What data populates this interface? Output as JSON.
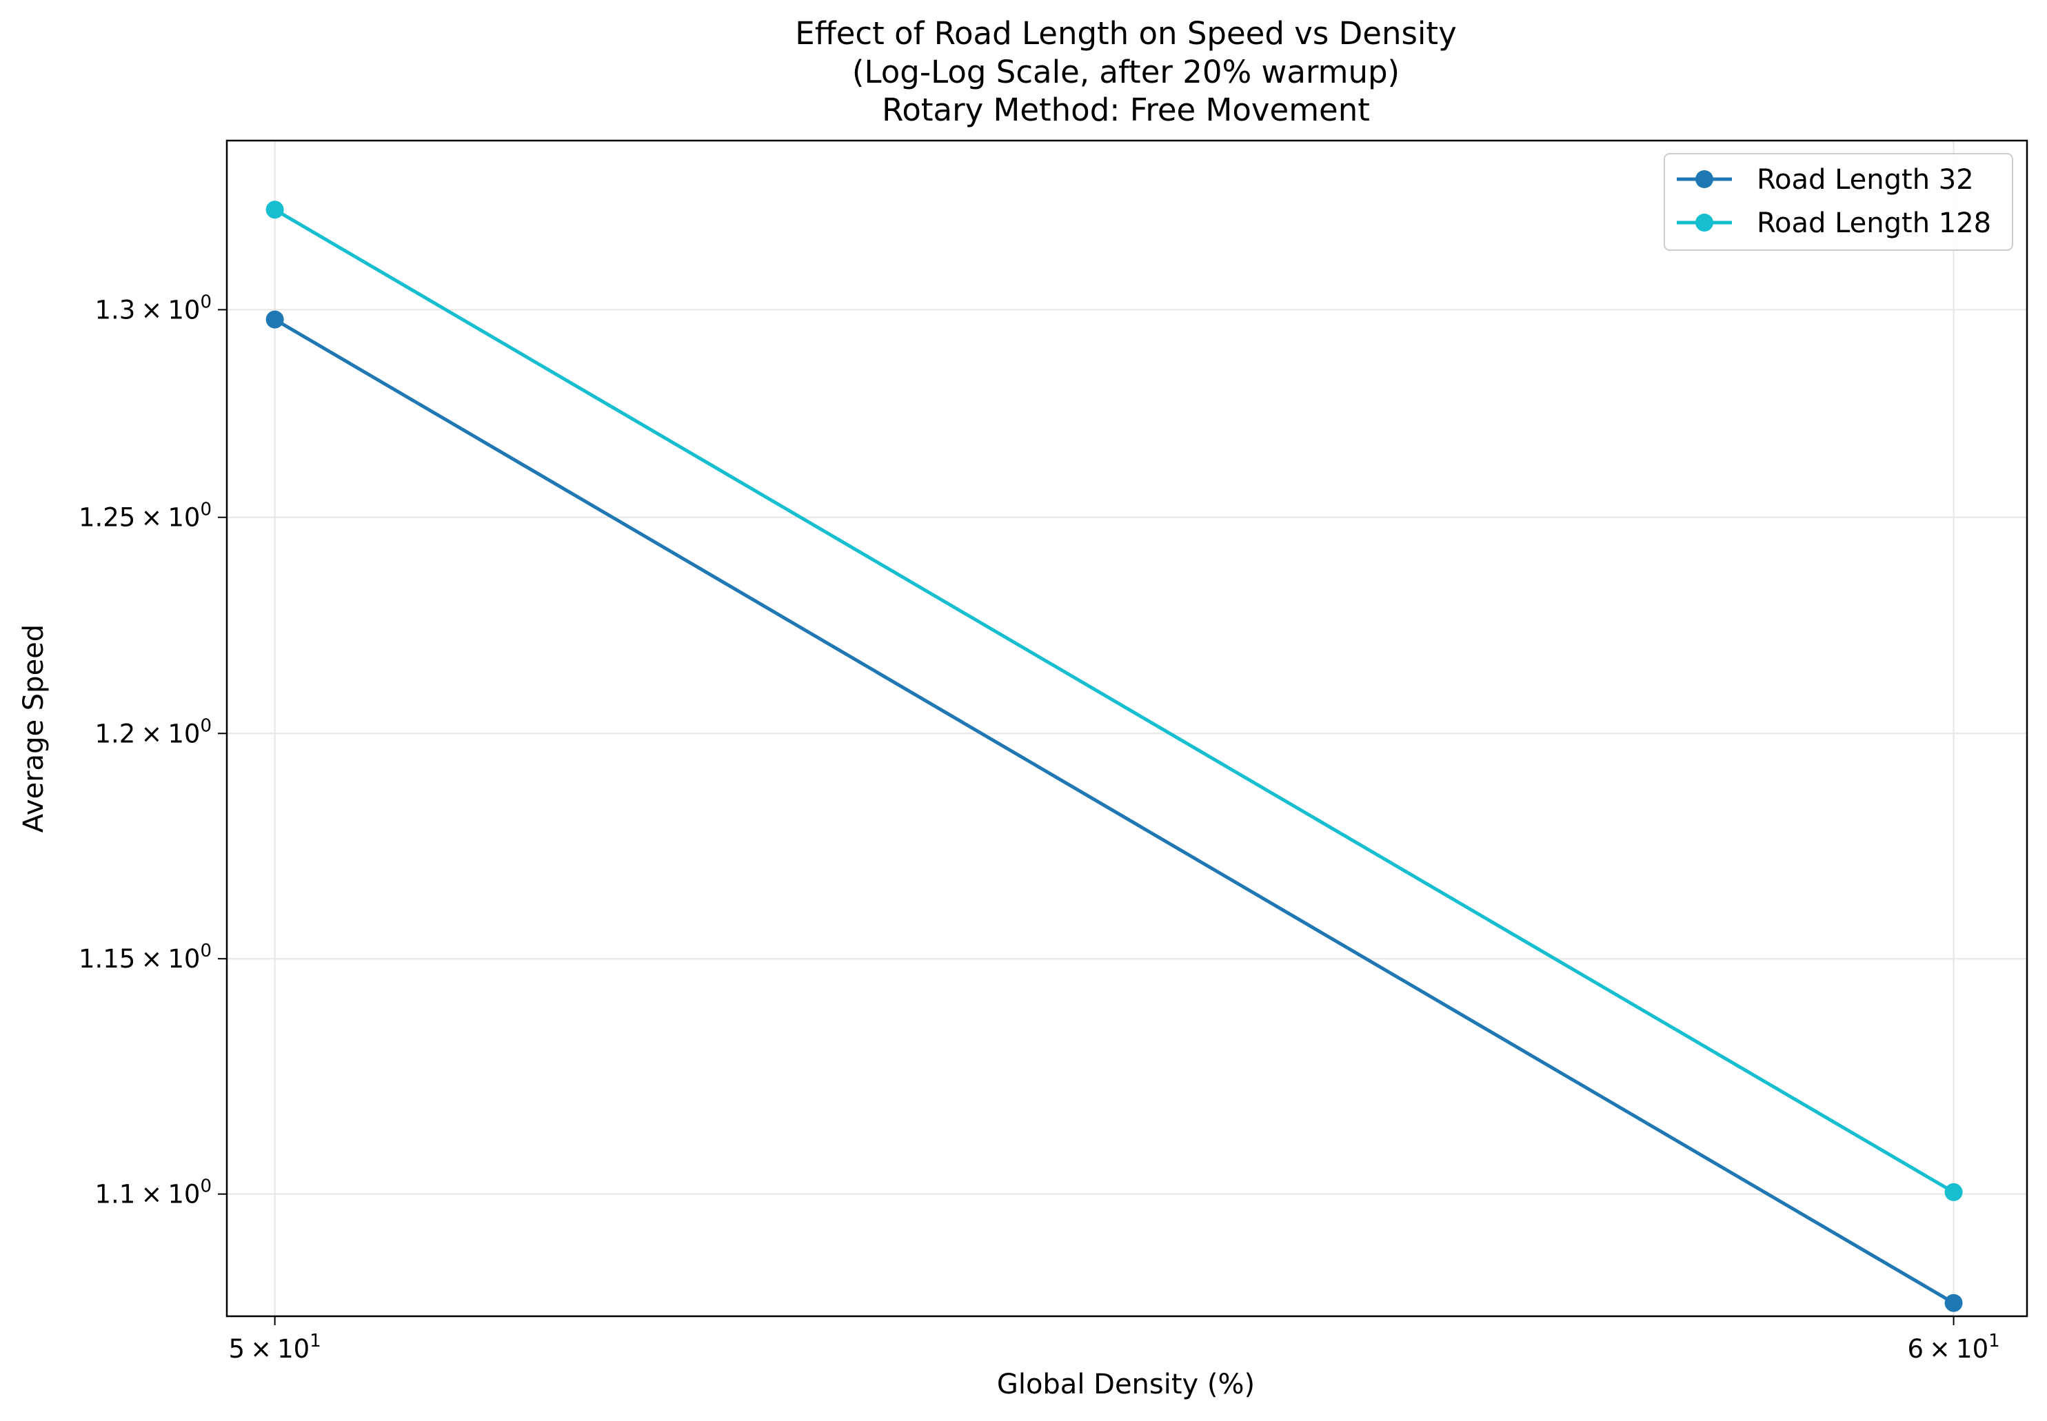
{
  "chart_data": {
    "type": "line",
    "title_lines": [
      "Effect of Road Length on Speed vs Density",
      "(Log-Log Scale, after 20% warmup)",
      "Rotary Method: Free Movement"
    ],
    "xlabel": "Global Density (%)",
    "ylabel": "Average Speed",
    "xscale": "log",
    "yscale": "log",
    "xlim": [
      49.74,
      60.48
    ],
    "ylim": [
      1.0749,
      1.3422
    ],
    "x_ticks": [
      {
        "value": 50,
        "mant": "5",
        "exp": "1"
      },
      {
        "value": 60,
        "mant": "6",
        "exp": "1"
      }
    ],
    "y_ticks": [
      {
        "value": 1.1,
        "mant": "1.1",
        "exp": "0"
      },
      {
        "value": 1.15,
        "mant": "1.15",
        "exp": "0"
      },
      {
        "value": 1.2,
        "mant": "1.2",
        "exp": "0"
      },
      {
        "value": 1.25,
        "mant": "1.25",
        "exp": "0"
      },
      {
        "value": 1.3,
        "mant": "1.3",
        "exp": "0"
      }
    ],
    "x": [
      50,
      60
    ],
    "series": [
      {
        "name": "Road Length 32",
        "color": "#1f77b4",
        "values": [
          1.2976,
          1.0776
        ]
      },
      {
        "name": "Road Length 128",
        "color": "#17becf",
        "values": [
          1.3248,
          1.1004
        ]
      }
    ],
    "grid": true,
    "legend_position": "top-right"
  }
}
